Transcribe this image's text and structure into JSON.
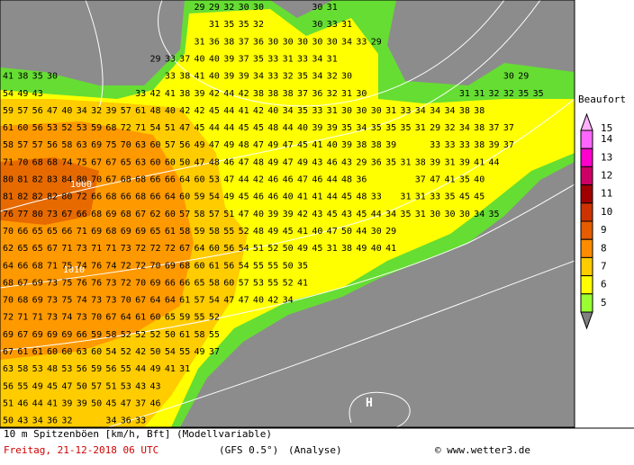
{
  "map": {
    "grid_rows": [
      [
        null,
        null,
        null,
        null,
        null,
        null,
        null,
        null,
        null,
        null,
        null,
        null,
        null,
        29,
        29,
        32,
        30,
        30,
        null,
        null,
        null,
        30,
        31
      ],
      [
        null,
        null,
        null,
        null,
        null,
        null,
        null,
        null,
        null,
        null,
        null,
        null,
        null,
        null,
        31,
        35,
        35,
        32,
        null,
        null,
        null,
        30,
        33,
        31
      ],
      [
        null,
        null,
        null,
        null,
        null,
        null,
        null,
        null,
        null,
        null,
        null,
        null,
        null,
        31,
        36,
        38,
        37,
        36,
        30,
        30,
        30,
        30,
        30,
        34,
        33,
        29
      ],
      [
        null,
        null,
        null,
        null,
        null,
        null,
        null,
        null,
        null,
        null,
        29,
        33,
        37,
        40,
        40,
        39,
        37,
        35,
        33,
        31,
        33,
        34,
        31
      ],
      [
        41,
        38,
        35,
        30,
        null,
        null,
        null,
        null,
        null,
        null,
        null,
        33,
        38,
        41,
        40,
        39,
        39,
        34,
        33,
        32,
        35,
        34,
        32,
        30,
        null,
        null,
        null,
        null,
        null,
        null,
        null,
        null,
        null,
        null,
        30,
        29
      ],
      [
        54,
        49,
        43,
        null,
        null,
        null,
        null,
        null,
        null,
        33,
        42,
        41,
        38,
        39,
        42,
        44,
        42,
        38,
        38,
        38,
        37,
        36,
        32,
        31,
        30,
        null,
        null,
        null,
        null,
        null,
        null,
        31,
        31,
        32,
        32,
        35,
        35
      ],
      [
        59,
        57,
        56,
        47,
        40,
        34,
        32,
        39,
        57,
        61,
        48,
        40,
        42,
        42,
        45,
        44,
        41,
        42,
        40,
        34,
        35,
        33,
        31,
        30,
        30,
        30,
        31,
        33,
        34,
        34,
        34,
        38,
        38
      ],
      [
        61,
        60,
        56,
        53,
        52,
        53,
        59,
        68,
        72,
        71,
        54,
        51,
        47,
        45,
        44,
        44,
        45,
        45,
        48,
        44,
        40,
        39,
        39,
        35,
        34,
        35,
        35,
        35,
        31,
        29,
        32,
        34,
        38,
        37,
        37
      ],
      [
        58,
        57,
        57,
        56,
        58,
        63,
        69,
        75,
        70,
        63,
        60,
        57,
        56,
        49,
        47,
        49,
        48,
        47,
        49,
        47,
        45,
        41,
        40,
        39,
        38,
        38,
        39,
        null,
        null,
        33,
        33,
        33,
        38,
        39,
        37
      ],
      [
        71,
        70,
        68,
        68,
        74,
        75,
        67,
        67,
        65,
        63,
        60,
        60,
        50,
        47,
        48,
        46,
        47,
        48,
        49,
        47,
        49,
        43,
        46,
        43,
        29,
        36,
        35,
        31,
        38,
        39,
        31,
        39,
        41,
        44
      ],
      [
        80,
        81,
        82,
        83,
        84,
        80,
        70,
        67,
        68,
        68,
        66,
        66,
        64,
        60,
        53,
        47,
        44,
        42,
        46,
        46,
        47,
        46,
        44,
        48,
        36,
        null,
        null,
        null,
        37,
        47,
        41,
        35,
        40
      ],
      [
        81,
        82,
        82,
        82,
        80,
        72,
        66,
        68,
        66,
        68,
        66,
        64,
        60,
        59,
        54,
        49,
        45,
        46,
        46,
        40,
        41,
        41,
        44,
        45,
        48,
        33,
        null,
        31,
        31,
        33,
        35,
        45,
        45
      ],
      [
        76,
        77,
        80,
        73,
        67,
        66,
        68,
        69,
        68,
        67,
        62,
        60,
        57,
        58,
        57,
        51,
        47,
        40,
        39,
        39,
        42,
        43,
        45,
        43,
        45,
        44,
        34,
        35,
        31,
        30,
        30,
        30,
        34,
        35
      ],
      [
        70,
        66,
        65,
        65,
        66,
        71,
        69,
        68,
        69,
        69,
        65,
        61,
        58,
        59,
        58,
        55,
        52,
        48,
        49,
        45,
        41,
        40,
        47,
        50,
        44,
        30,
        29
      ],
      [
        62,
        65,
        65,
        67,
        71,
        73,
        71,
        71,
        73,
        72,
        72,
        72,
        67,
        64,
        60,
        56,
        54,
        51,
        52,
        50,
        49,
        45,
        31,
        38,
        49,
        40,
        41
      ],
      [
        64,
        66,
        68,
        71,
        75,
        74,
        76,
        74,
        72,
        72,
        70,
        69,
        68,
        60,
        61,
        56,
        54,
        55,
        55,
        50,
        35
      ],
      [
        68,
        67,
        69,
        73,
        75,
        76,
        76,
        73,
        72,
        70,
        69,
        66,
        66,
        65,
        58,
        60,
        57,
        53,
        55,
        52,
        41
      ],
      [
        70,
        68,
        69,
        73,
        75,
        74,
        73,
        73,
        70,
        67,
        64,
        64,
        61,
        57,
        54,
        47,
        47,
        40,
        42,
        34
      ],
      [
        72,
        71,
        71,
        73,
        74,
        73,
        70,
        67,
        64,
        61,
        60,
        65,
        59,
        55,
        52
      ],
      [
        69,
        67,
        69,
        69,
        69,
        66,
        59,
        58,
        52,
        52,
        52,
        50,
        61,
        58,
        55
      ],
      [
        67,
        61,
        61,
        60,
        60,
        63,
        60,
        54,
        52,
        42,
        50,
        54,
        55,
        49,
        37
      ],
      [
        63,
        58,
        53,
        48,
        53,
        56,
        59,
        56,
        55,
        44,
        49,
        41,
        31
      ],
      [
        56,
        55,
        49,
        45,
        47,
        50,
        57,
        51,
        53,
        43,
        43
      ],
      [
        51,
        46,
        44,
        41,
        39,
        39,
        50,
        45,
        47,
        37,
        46
      ],
      [
        50,
        43,
        34,
        36,
        32,
        null,
        null,
        34,
        36,
        33
      ]
    ],
    "isobar_labels": [
      "1000",
      "1010"
    ],
    "high_label": "H"
  },
  "legend": {
    "title": "Beaufort",
    "levels": [
      "15",
      "14",
      "13",
      "12",
      "11",
      "10",
      "9",
      "8",
      "7",
      "6",
      "5"
    ],
    "colors": [
      "#ffb0ff",
      "#ff66ff",
      "#ff00cc",
      "#cc0066",
      "#a00000",
      "#cc3300",
      "#e65c00",
      "#ff8c00",
      "#ffcc00",
      "#ffff00",
      "#99ff33"
    ]
  },
  "footer": {
    "line1": "10 m Spitzenböen [km/h, Bft] (Modellvariable)",
    "date": "Freitag, 21-12-2018  06 UTC",
    "model": "(GFS 0.5°)",
    "run": "(Analyse)",
    "credit": "© www.wetter3.de"
  }
}
